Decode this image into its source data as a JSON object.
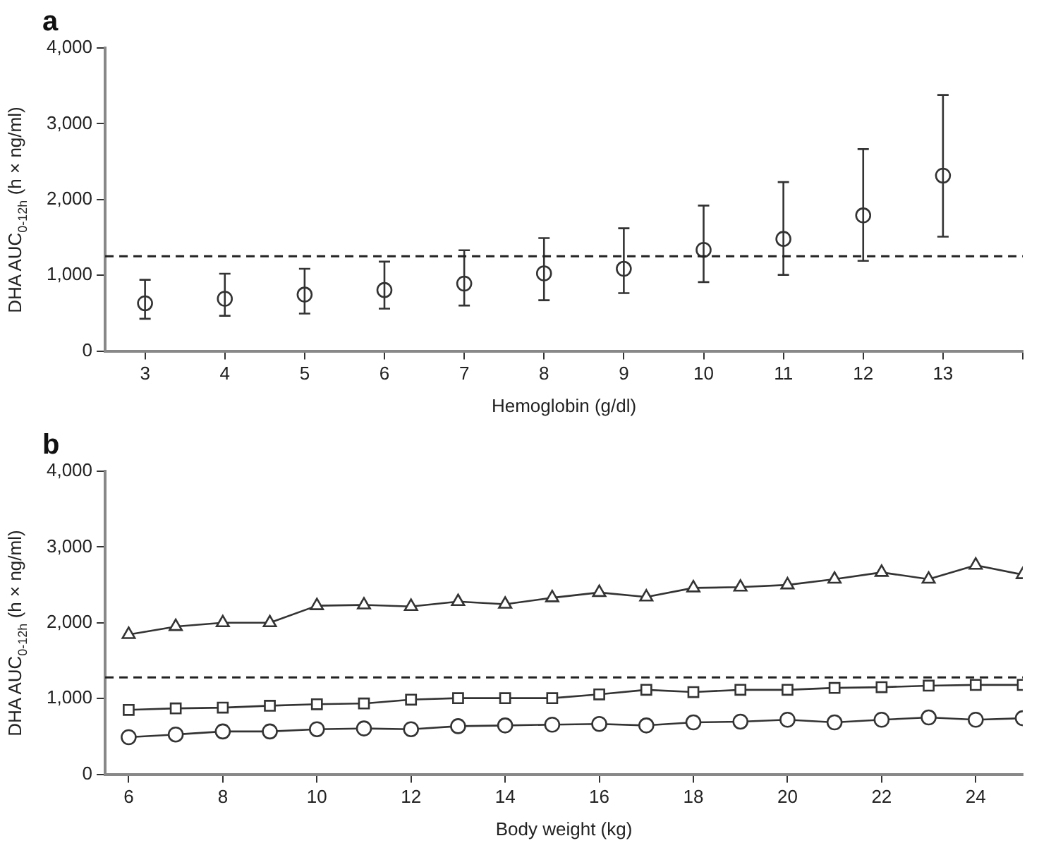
{
  "chart_data": [
    {
      "type": "scatter",
      "title": "a",
      "xlabel": "Hemoglobin (g/dl)",
      "ylabel": "DHA AUC$_{0-12h}$ (h × ng/ml)",
      "x": [
        3,
        4,
        5,
        6,
        7,
        8,
        9,
        10,
        11,
        12,
        13
      ],
      "series": [
        {
          "color": "#333333",
          "marker": "circle",
          "values": [
            630,
            690,
            745,
            805,
            890,
            1025,
            1085,
            1335,
            1480,
            1790,
            2315
          ],
          "errors": [
            [
              426,
              940
            ],
            [
              465,
              1020
            ],
            [
              495,
              1085
            ],
            [
              560,
              1180
            ],
            [
              600,
              1330
            ],
            [
              670,
              1490
            ],
            [
              765,
              1620
            ],
            [
              910,
              1920
            ],
            [
              1005,
              2230
            ],
            [
              1190,
              2665
            ],
            [
              1510,
              3380
            ]
          ]
        }
      ],
      "xlim": [
        2.5,
        14
      ],
      "xticks": [
        3,
        4,
        5,
        6,
        7,
        8,
        9,
        10,
        11,
        12,
        13,
        {
          "value": 14,
          "label": null
        }
      ],
      "ylim": [
        0,
        4000
      ],
      "yticks": [
        0,
        {
          "value": 1000,
          "label": "1,000"
        },
        {
          "value": 2000,
          "label": "2,000"
        },
        {
          "value": 3000,
          "label": "3,000"
        },
        {
          "value": 4000,
          "label": "4,000"
        }
      ],
      "ref_lines": [
        {
          "axis": "y",
          "value": 1250,
          "color": "#222222",
          "line_style": "dashed"
        }
      ],
      "grid": false,
      "legend": false
    },
    {
      "type": "line",
      "title": "b",
      "xlabel": "Body weight (kg)",
      "ylabel": "DHA AUC$_{0-12h}$ (h × ng/ml)",
      "x": [
        6,
        7,
        8,
        9,
        10,
        11,
        12,
        13,
        14,
        15,
        16,
        17,
        18,
        19,
        20,
        21,
        22,
        23,
        24,
        25
      ],
      "series": [
        {
          "color": "#333333",
          "marker": "triangle",
          "values": [
            1845,
            1950,
            2000,
            2000,
            2225,
            2235,
            2215,
            2280,
            2245,
            2330,
            2400,
            2340,
            2460,
            2470,
            2500,
            2575,
            2665,
            2575,
            2760,
            2635
          ]
        },
        {
          "color": "#333333",
          "marker": "square",
          "values": [
            850,
            870,
            880,
            905,
            925,
            935,
            985,
            1005,
            1005,
            1005,
            1055,
            1115,
            1085,
            1115,
            1115,
            1140,
            1150,
            1170,
            1180,
            1180
          ]
        },
        {
          "color": "#333333",
          "marker": "circle",
          "values": [
            490,
            525,
            565,
            565,
            595,
            605,
            595,
            635,
            645,
            655,
            665,
            645,
            685,
            695,
            720,
            685,
            720,
            750,
            720,
            740
          ]
        }
      ],
      "xlim": [
        5.5,
        25
      ],
      "xticks": [
        6,
        8,
        10,
        12,
        14,
        16,
        18,
        20,
        22,
        24
      ],
      "ylim": [
        0,
        4000
      ],
      "yticks": [
        0,
        {
          "value": 1000,
          "label": "1,000"
        },
        {
          "value": 2000,
          "label": "2,000"
        },
        {
          "value": 3000,
          "label": "3,000"
        },
        {
          "value": 4000,
          "label": "4,000"
        }
      ],
      "ref_lines": [
        {
          "axis": "y",
          "value": 1280,
          "color": "#222222",
          "line_style": "dashed"
        }
      ],
      "grid": false,
      "legend": false
    }
  ]
}
